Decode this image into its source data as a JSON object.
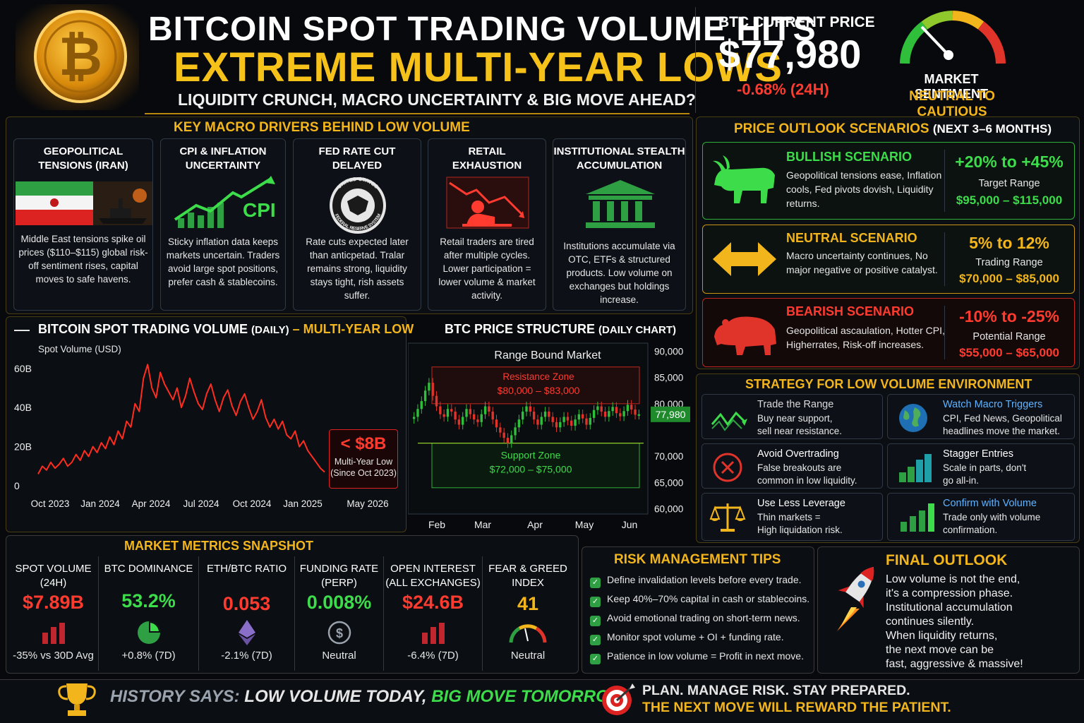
{
  "header": {
    "title_line1": "BITCOIN SPOT TRADING VOLUME HITS",
    "title_line2": "EXTREME MULTI-YEAR LOWS",
    "subtitle": "LIQUIDITY CRUNCH, MACRO UNCERTAINTY & BIG MOVE AHEAD?",
    "price_label": "BTC CURRENT PRICE",
    "price_value": "$77,980",
    "price_change": "-0.68% (24H)",
    "sentiment_label": "MARKET SENTIMENT",
    "sentiment_value": "NEUTRAL TO CAUTIOUS"
  },
  "drivers": {
    "title": "KEY MACRO DRIVERS BEHIND LOW VOLUME",
    "cards": [
      {
        "title": "GEOPOLITICAL TENSIONS (IRAN)",
        "text": "Middle East tensions spike oil prices ($110–$115) global risk-off sentiment rises, capital moves to safe havens."
      },
      {
        "title": "CPI & INFLATION UNCERTAINTY",
        "icon_text": "CPI",
        "text": "Sticky inflation data keeps markets uncertain. Traders avoid large spot positions, prefer cash & stablecoins."
      },
      {
        "title": "FED RATE CUT DELAYED",
        "seal_top": "UNITED STATES",
        "seal_bottom": "FEDERAL RESERVE SYSTEM",
        "text": "Rate cuts expected later than anticpetad. Tralar remains strong, liquidity stays tight, rish assets suffer."
      },
      {
        "title": "RETAIL EXHAUSTION",
        "text": "Retail traders are tired after multiple cycles. Lower participation = lower volume & market activity."
      },
      {
        "title": "INSTITUTIONAL STEALTH ACCUMULATION",
        "text": "Institutions accumulate via OTC, ETFs & structured products. Low volume on exchanges but holdings increase."
      }
    ]
  },
  "volume_chart": {
    "title": "BITCOIN SPOT TRADING VOLUME",
    "title_suffix": "(DAILY)",
    "title_dash": " – ",
    "title_highlight": "MULTI-YEAR LOW",
    "callout_value": "< $8B",
    "callout_line1": "Multi-Year Low",
    "callout_line2": "(Since Oct 2023)"
  },
  "price_chart": {
    "title": "BTC PRICE STRUCTURE",
    "title_suffix": "(DAILY CHART)",
    "range_label": "Range Bound Market",
    "resistance_label": "Resistance Zone",
    "resistance_range": "$80,000 – $83,000",
    "support_label": "Support Zone",
    "support_range": "$72,000 – $75,000",
    "current_tag": "77,980"
  },
  "chart_data": [
    {
      "type": "line",
      "title": "BITCOIN SPOT TRADING VOLUME (DAILY) – MULTI-YEAR LOW",
      "ylabel": "Spot Volume (USD)",
      "x_ticks": [
        "Oct 2023",
        "Jan 2024",
        "Apr 2024",
        "Jul 2024",
        "Oct 2024",
        "Jan 2025",
        "May 2026"
      ],
      "y_ticks": [
        "0",
        "20B",
        "40B",
        "60B"
      ],
      "ylim": [
        0,
        65
      ],
      "series": [
        {
          "values": [
            6,
            10,
            8,
            12,
            9,
            11,
            14,
            10,
            12,
            16,
            13,
            18,
            15,
            20,
            17,
            22,
            19,
            25,
            21,
            28,
            24,
            33,
            30,
            42,
            38,
            55,
            62,
            50,
            45,
            58,
            52,
            48,
            44,
            50,
            40,
            46,
            55,
            48,
            42,
            39,
            47,
            52,
            44,
            38,
            45,
            49,
            41,
            36,
            43,
            47,
            40,
            34,
            38,
            44,
            35,
            30,
            34,
            29,
            33,
            26,
            24,
            28,
            20,
            23,
            18,
            15,
            12,
            9,
            7
          ]
        }
      ]
    },
    {
      "type": "candlestick",
      "title": "BTC PRICE STRUCTURE (DAILY CHART)",
      "x_ticks": [
        "Feb",
        "Mar",
        "Apr",
        "May",
        "Jun"
      ],
      "y_ticks": [
        "60,000",
        "65,000",
        "70,000",
        "75,000",
        "80,000",
        "85,000",
        "90,000"
      ],
      "ylim": [
        59000,
        91000
      ],
      "closes": [
        77500,
        79000,
        80500,
        82500,
        84000,
        81500,
        79500,
        78000,
        77500,
        79000,
        78500,
        77000,
        76000,
        77500,
        79000,
        78000,
        77000,
        76500,
        78000,
        79500,
        78500,
        77000,
        75500,
        74500,
        73500,
        72500,
        74000,
        75500,
        77000,
        78500,
        79500,
        78500,
        77000,
        76000,
        77500,
        78500,
        77500,
        76500,
        75500,
        76500,
        77500,
        76800,
        75800,
        77000,
        78000,
        77200,
        76000,
        77300,
        78800,
        79500,
        78500,
        77500,
        78600,
        79400,
        78200,
        77600,
        78600,
        79800,
        78900,
        77900,
        77980
      ]
    }
  ],
  "scenarios": {
    "title": "PRICE OUTLOOK SCENARIOS",
    "title_suffix": "(NEXT 3–6 MONTHS)",
    "items": [
      {
        "name": "BULLISH SCENARIO",
        "text": "Geopolitical tensions ease, Inflation cools, Fed pivots dovish, Liquidity returns.",
        "pct": "+20% to +45%",
        "range_label": "Target Range",
        "range": "$95,000 – $115,000",
        "color": "#3ddc4b"
      },
      {
        "name": "NEUTRAL SCENARIO",
        "text": "Macro uncertainty continues, No major negative or positive catalyst.",
        "pct": "5% to 12%",
        "range_label": "Trading Range",
        "range": "$70,000 – $85,000",
        "color": "#f2b51c"
      },
      {
        "name": "BEARISH SCENARIO",
        "text": "Geopolitical ascaulation, Hotter CPI, Higherrates, Risk-off increases.",
        "pct": "-10% to -25%",
        "range_label": "Potential Range",
        "range": "$55,000 – $65,000",
        "color": "#ff3b30"
      }
    ]
  },
  "strategy": {
    "title": "STRATEGY FOR LOW VOLUME ENVIRONMENT",
    "items": [
      {
        "title": "Trade the Range",
        "text1": "Buy near support,",
        "text2": "sell near resistance."
      },
      {
        "title": "Watch Macro Triggers",
        "text1": "CPI, Fed News, Geopolitical",
        "text2": "headlines move the market."
      },
      {
        "title": "Avoid Overtrading",
        "text1": "False breakouts are",
        "text2": "common in low liquidity."
      },
      {
        "title": "Stagger Entries",
        "text1": "Scale in parts, don't",
        "text2": "go all-in."
      },
      {
        "title": "Use Less Leverage",
        "text1": "Thin markets =",
        "text2": "High liquidation risk."
      },
      {
        "title": "Confirm with Volume",
        "text1": "Trade only with volume",
        "text2": "confirmation."
      }
    ]
  },
  "metrics": {
    "title": "MARKET METRICS SNAPSHOT",
    "items": [
      {
        "label1": "SPOT VOLUME",
        "label2": "(24H)",
        "value": "$7.89B",
        "footer": "-35% vs 30D Avg",
        "color": "#ff3b30"
      },
      {
        "label1": "BTC DOMINANCE",
        "label2": "",
        "value": "53.2%",
        "footer": "+0.8% (7D)",
        "color": "#3ddc4b"
      },
      {
        "label1": "ETH/BTC RATIO",
        "label2": "",
        "value": "0.053",
        "footer": "-2.1% (7D)",
        "color": "#ff3b30"
      },
      {
        "label1": "FUNDING RATE",
        "label2": "(PERP)",
        "value": "0.008%",
        "footer": "Neutral",
        "color": "#3ddc4b"
      },
      {
        "label1": "OPEN INTEREST",
        "label2": "(ALL EXCHANGES)",
        "value": "$24.6B",
        "footer": "-6.4% (7D)",
        "color": "#ff3b30"
      },
      {
        "label1": "FEAR & GREED",
        "label2": "INDEX",
        "value": "41",
        "footer": "Neutral",
        "color": "#f2b51c"
      }
    ]
  },
  "risk": {
    "title": "RISK MANAGEMENT TIPS",
    "tips": [
      "Define invalidation levels before every trade.",
      "Keep 40%–70% capital in cash or stablecoins.",
      "Avoid emotional trading on short-term news.",
      "Monitor spot volume + OI + funding rate.",
      "Patience in low volume = Profit in next move."
    ]
  },
  "outlook": {
    "title": "FINAL OUTLOOK",
    "lines": [
      "Low volume is not the end,",
      "it's a compression phase.",
      "Institutional accumulation",
      "continues silently.",
      "When liquidity returns,",
      "the next move can be",
      "fast, aggressive & massive!"
    ]
  },
  "footer": {
    "history_prefix": "HISTORY SAYS: ",
    "history_mid": "LOW VOLUME TODAY, ",
    "history_end": "BIG MOVE TOMORROW",
    "plan_line1": "PLAN. MANAGE RISK. STAY PREPARED.",
    "plan_line2": "THE NEXT MOVE WILL REWARD THE PATIENT."
  },
  "colors": {
    "gold": "#f2b51c",
    "red": "#ff3b30",
    "green": "#3ddc4b",
    "background": "#07090c"
  }
}
